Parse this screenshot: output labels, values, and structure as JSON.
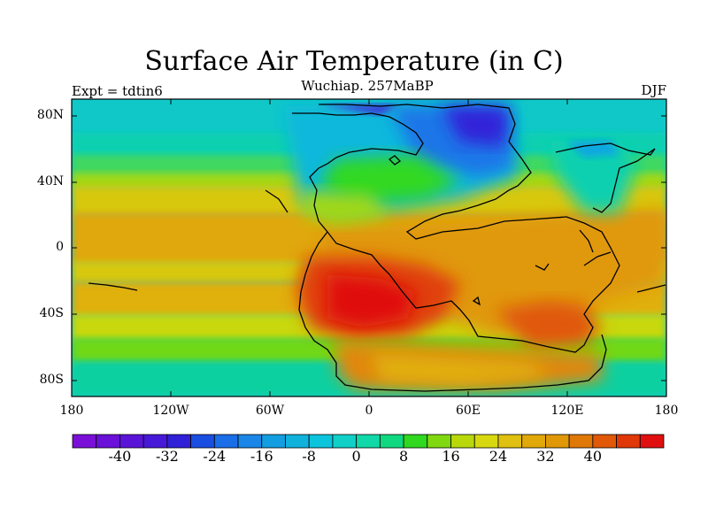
{
  "title": "Surface Air Temperature (in C)",
  "subtitle": "Wuchiap. 257MaBP",
  "left_label": "Expt = tdtin6",
  "right_label": "DJF",
  "lat_ticks": [
    "80N",
    "40N",
    "0",
    "40S",
    "80S"
  ],
  "lon_ticks": [
    "180",
    "120W",
    "60W",
    "0",
    "60E",
    "120E",
    "180"
  ],
  "colorbar": {
    "labels": [
      "-40",
      "-32",
      "-24",
      "-16",
      "-8",
      "0",
      "8",
      "16",
      "24",
      "32",
      "40"
    ],
    "colors": [
      "#7a10d8",
      "#6a10d8",
      "#5a14d8",
      "#4818d8",
      "#3020d8",
      "#1a4ee0",
      "#1a6ee8",
      "#1a86e8",
      "#129ee0",
      "#10b2dc",
      "#0cc4dc",
      "#10d0c8",
      "#10d8a8",
      "#10d880",
      "#30d820",
      "#80d810",
      "#b8d80c",
      "#d8d810",
      "#e0c010",
      "#e0a808",
      "#e09808",
      "#e07808",
      "#e05808",
      "#e03808",
      "#e01010"
    ]
  }
}
